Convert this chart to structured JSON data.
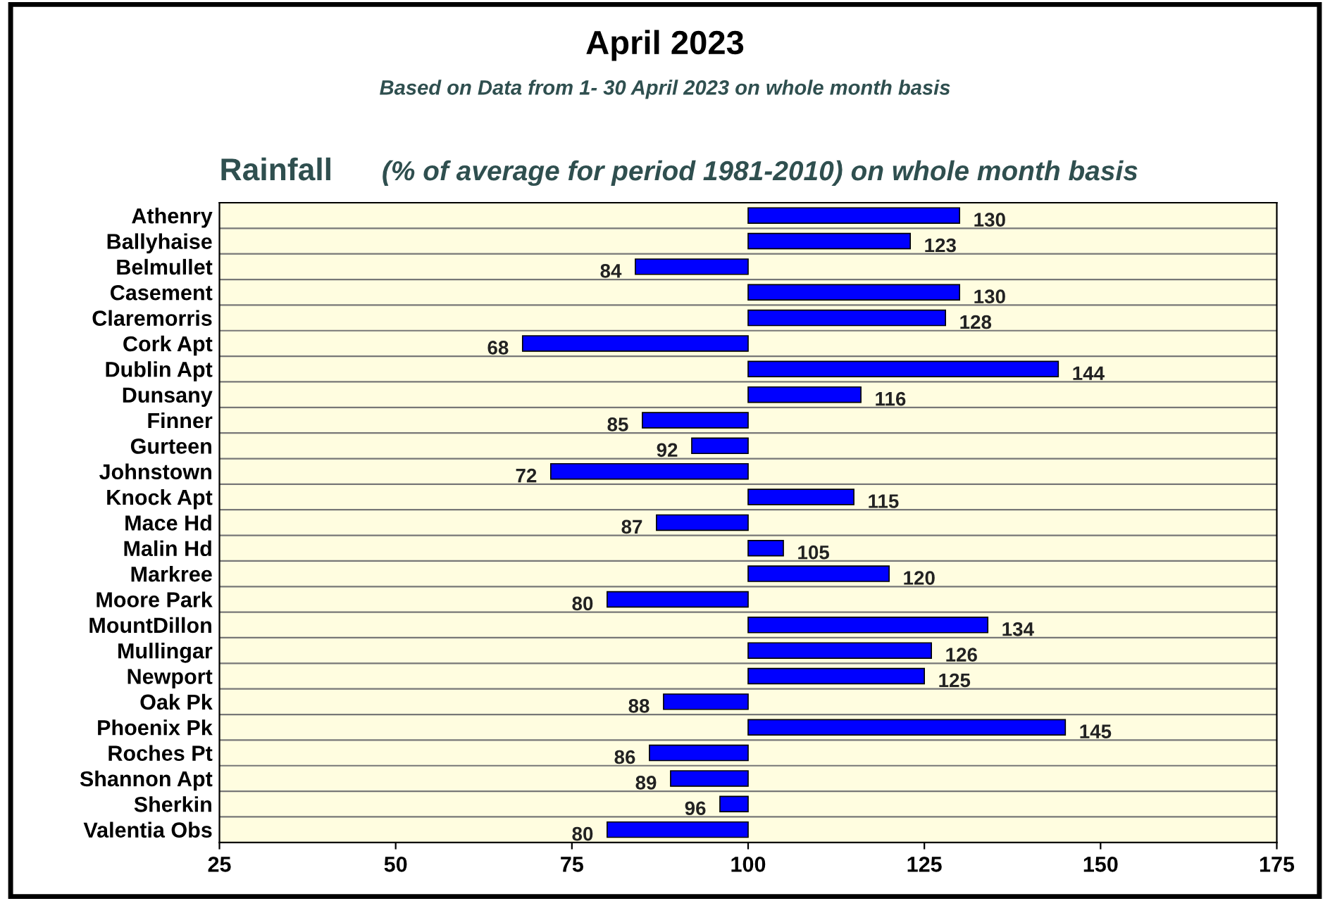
{
  "chart_data": {
    "type": "bar",
    "orientation": "horizontal",
    "title": "April 2023",
    "subtitle": "Based on Data from 1- 30 April 2023 on whole month basis",
    "annotations": [
      "Rainfall",
      "(% of average for period 1981-2010) on whole month basis"
    ],
    "categories": [
      "Athenry",
      "Ballyhaise",
      "Belmullet",
      "Casement",
      "Claremorris",
      "Cork Apt",
      "Dublin Apt",
      "Dunsany",
      "Finner",
      "Gurteen",
      "Johnstown",
      "Knock Apt",
      "Mace Hd",
      "Malin Hd",
      "Markree",
      "Moore Park",
      "MountDillon",
      "Mullingar",
      "Newport",
      "Oak Pk",
      "Phoenix Pk",
      "Roches Pt",
      "Shannon Apt",
      "Sherkin",
      "Valentia Obs"
    ],
    "base": [
      100,
      100,
      100,
      100,
      100,
      100,
      100,
      100,
      100,
      100,
      100,
      100,
      100,
      100,
      100,
      100,
      100,
      100,
      100,
      100,
      100,
      100,
      100,
      100,
      100
    ],
    "values": [
      30,
      23,
      -16,
      30,
      28,
      -32,
      44,
      16,
      -15,
      -8,
      -28,
      15,
      -13,
      5,
      20,
      -20,
      34,
      26,
      25,
      -12,
      45,
      -14,
      -11,
      -4,
      -20
    ],
    "value_labels": [
      "130",
      "123",
      "84",
      "130",
      "128",
      "68",
      "144",
      "116",
      "85",
      "92",
      "72",
      "115",
      "87",
      "105",
      "120",
      "80",
      "134",
      "126",
      "125",
      "88",
      "145",
      "86",
      "89",
      "96",
      "80"
    ],
    "color": "#0000ff",
    "xlim": [
      25,
      175
    ],
    "xticks": [
      25,
      50,
      75,
      100,
      125,
      150,
      175
    ],
    "grid": "y"
  }
}
